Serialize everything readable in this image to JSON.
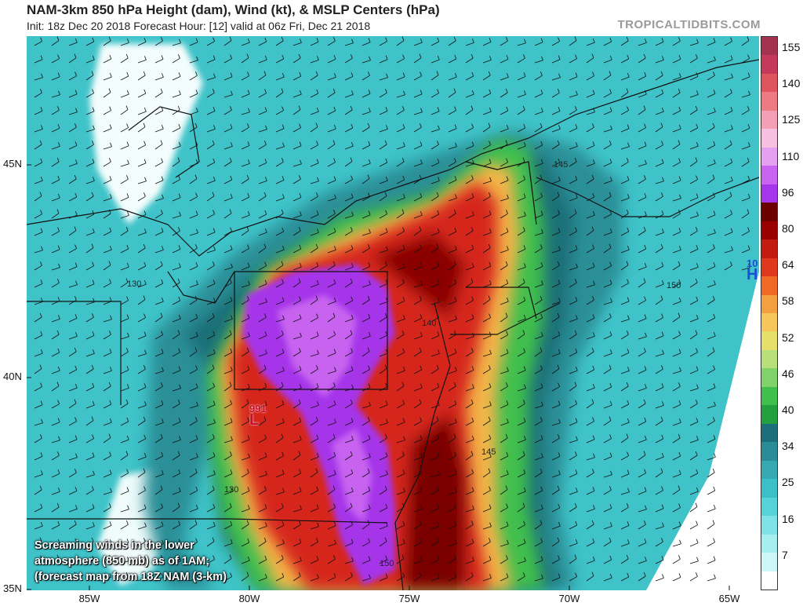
{
  "header": {
    "title": "NAM-3km 850 hPa Height (dam), Wind (kt), & MSLP Centers (hPa)",
    "subtitle": "Init: 18z Dec 20 2018   Forecast Hour: [12]   valid at 06z Fri, Dec 21 2018",
    "credit": "TROPICALTIDBITS.COM"
  },
  "colorbar": {
    "labels": [
      "155",
      "140",
      "125",
      "110",
      "96",
      "80",
      "64",
      "58",
      "52",
      "46",
      "40",
      "34",
      "25",
      "16",
      "7"
    ],
    "colors": [
      "#a3334e",
      "#c53a5a",
      "#e0545f",
      "#ee7b83",
      "#f4a0b4",
      "#f7bfe0",
      "#e6a0f2",
      "#c864f0",
      "#a636ea",
      "#6a0000",
      "#9b0000",
      "#c21c10",
      "#e0381c",
      "#f06a26",
      "#f3a040",
      "#f6c65a",
      "#e6e06a",
      "#b8e07a",
      "#7fd36a",
      "#3fbf4e",
      "#22a040",
      "#1a6f7a",
      "#2a8c96",
      "#34a9b2",
      "#3cc0c8",
      "#55d3d8",
      "#7ee2e6",
      "#a6eef0",
      "#ccf6f8",
      "#ffffff"
    ]
  },
  "axes": {
    "lat_labels": [
      "45N",
      "40N",
      "35N"
    ],
    "lon_labels": [
      "85W",
      "80W",
      "75W",
      "70W",
      "65W"
    ]
  },
  "centers": {
    "low": {
      "pressure": "991",
      "symbol": "L",
      "color": "#c8102e"
    },
    "high": {
      "pressure": "10",
      "symbol": "H",
      "color": "#1a4fd0"
    }
  },
  "contours": [
    "130",
    "130",
    "140",
    "145",
    "145",
    "150",
    "150"
  ],
  "caption": {
    "line1": "Screaming winds in the lower",
    "line2": "atmosphere (850 mb) as of 1AM;",
    "line3": "(forecast map from 18Z NAM (3-km)"
  }
}
